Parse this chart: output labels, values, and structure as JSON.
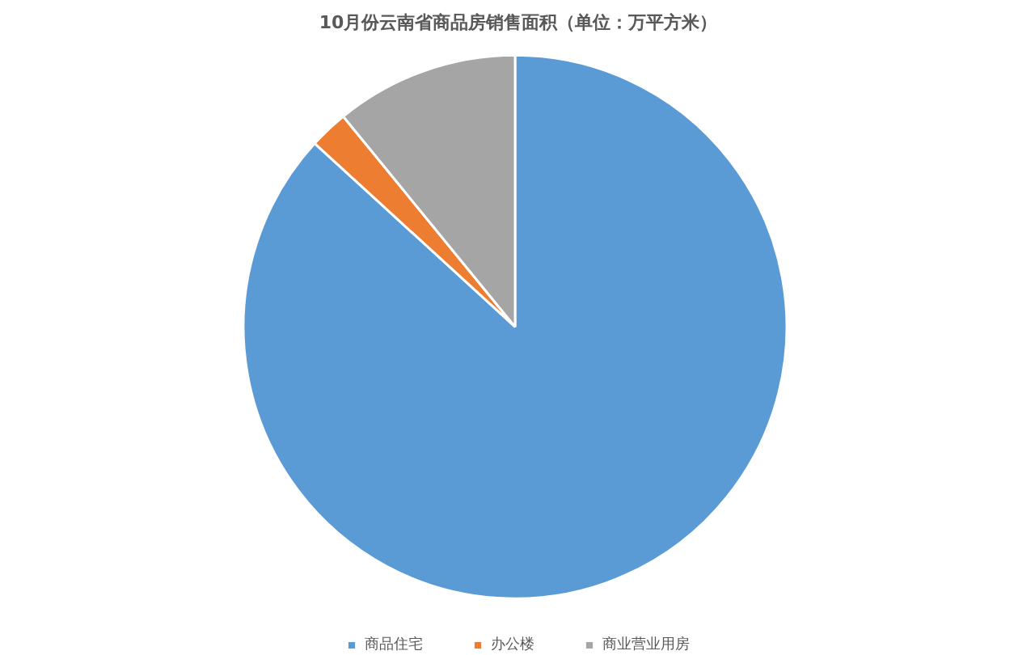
{
  "chart_data": {
    "type": "pie",
    "title": "10月份云南省商品房销售面积（单位：万平方米）",
    "categories": [
      "商品住宅",
      "办公楼",
      "商业营业用房"
    ],
    "values": [
      86.8,
      2.3,
      10.9
    ],
    "colors": [
      "#5b9bd5",
      "#ed7d31",
      "#a5a5a5"
    ],
    "legend": "bottom"
  }
}
